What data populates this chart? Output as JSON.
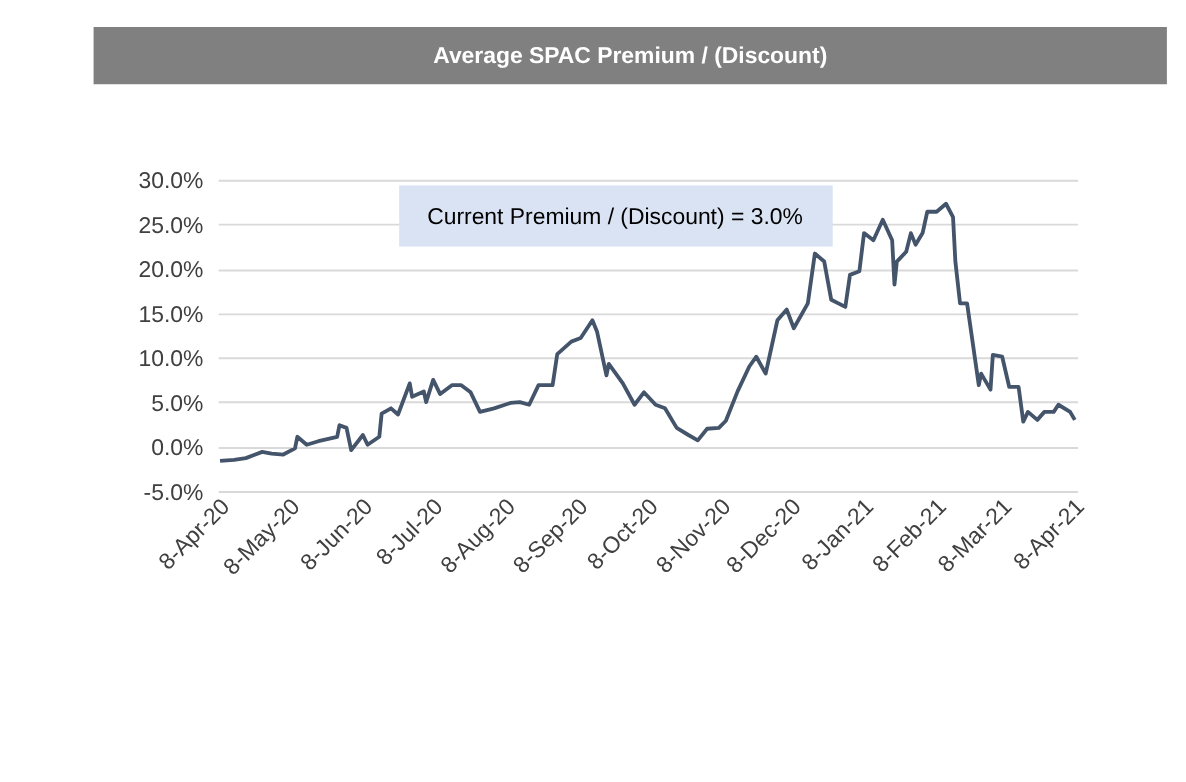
{
  "chart_data": {
    "type": "line",
    "title": "Average SPAC Premium / (Discount)",
    "annotations": [
      "Current Premium / (Discount) = 3.0%"
    ],
    "x": [
      "2020-04-09",
      "2020-04-15",
      "2020-04-20",
      "2020-04-27",
      "2020-05-01",
      "2020-05-06",
      "2020-05-11",
      "2020-05-12",
      "2020-05-16",
      "2020-05-21",
      "2020-05-29",
      "2020-05-30",
      "2020-06-02",
      "2020-06-04",
      "2020-06-09",
      "2020-06-11",
      "2020-06-16",
      "2020-06-17",
      "2020-06-21",
      "2020-06-24",
      "2020-06-29",
      "2020-06-30",
      "2020-07-05",
      "2020-07-06",
      "2020-07-09",
      "2020-07-12",
      "2020-07-17",
      "2020-07-21",
      "2020-07-25",
      "2020-07-29",
      "2020-08-04",
      "2020-08-11",
      "2020-08-15",
      "2020-08-19",
      "2020-08-23",
      "2020-08-29",
      "2020-08-31",
      "2020-09-06",
      "2020-09-10",
      "2020-09-15",
      "2020-09-17",
      "2020-09-21",
      "2020-09-22",
      "2020-09-28",
      "2020-10-03",
      "2020-10-07",
      "2020-10-12",
      "2020-10-16",
      "2020-10-21",
      "2020-10-26",
      "2020-10-30",
      "2020-11-03",
      "2020-11-08",
      "2020-11-11",
      "2020-11-16",
      "2020-11-21",
      "2020-11-24",
      "2020-11-28",
      "2020-12-03",
      "2020-12-07",
      "2020-12-10",
      "2020-12-16",
      "2020-12-19",
      "2020-12-23",
      "2020-12-26",
      "2021-01-01",
      "2021-01-03",
      "2021-01-07",
      "2021-01-09",
      "2021-01-13",
      "2021-01-17",
      "2021-01-21",
      "2021-01-22",
      "2021-01-23",
      "2021-01-27",
      "2021-01-29",
      "2021-01-31",
      "2021-02-03",
      "2021-02-05",
      "2021-02-09",
      "2021-02-13",
      "2021-02-16",
      "2021-02-17",
      "2021-02-19",
      "2021-02-22",
      "2021-02-27",
      "2021-02-28",
      "2021-03-04",
      "2021-03-05",
      "2021-03-09",
      "2021-03-12",
      "2021-03-16",
      "2021-03-18",
      "2021-03-20",
      "2021-03-24",
      "2021-03-27",
      "2021-03-31",
      "2021-04-02",
      "2021-04-07",
      "2021-04-09"
    ],
    "series": [
      {
        "color": "#44546a",
        "values": [
          -1.6,
          -1.5,
          -1.3,
          -0.6,
          -0.8,
          -0.9,
          -0.2,
          1.1,
          0.2,
          0.6,
          1.1,
          2.4,
          2.1,
          -0.4,
          1.3,
          0.2,
          1.1,
          3.7,
          4.3,
          3.6,
          7.1,
          5.6,
          6.2,
          5.0,
          7.5,
          5.9,
          6.9,
          6.9,
          6.1,
          3.9,
          4.3,
          4.9,
          5.0,
          4.7,
          6.9,
          6.9,
          10.4,
          11.8,
          12.2,
          14.2,
          12.9,
          8.0,
          9.3,
          7.1,
          4.7,
          6.1,
          4.7,
          4.3,
          2.1,
          1.3,
          0.7,
          2.0,
          2.1,
          2.9,
          6.2,
          9.0,
          10.1,
          8.2,
          14.2,
          15.4,
          13.3,
          16.1,
          21.7,
          20.8,
          16.5,
          15.7,
          19.3,
          19.7,
          24.0,
          23.2,
          25.5,
          23.2,
          18.2,
          20.8,
          21.9,
          24.0,
          22.7,
          24.0,
          26.4,
          26.4,
          27.3,
          25.8,
          20.8,
          16.1,
          16.1,
          6.9,
          8.2,
          6.4,
          10.3,
          10.1,
          6.7,
          6.7,
          2.8,
          3.9,
          3.0,
          3.9,
          3.9,
          4.7,
          3.9,
          3.0
        ]
      }
    ],
    "xlim": [
      "2020-04-08",
      "2021-04-10"
    ],
    "xticks": [
      {
        "value": "2020-04-08",
        "label": "8-Apr-20"
      },
      {
        "value": "2020-05-08",
        "label": "8-May-20"
      },
      {
        "value": "2020-06-08",
        "label": "8-Jun-20"
      },
      {
        "value": "2020-07-08",
        "label": "8-Jul-20"
      },
      {
        "value": "2020-08-08",
        "label": "8-Aug-20"
      },
      {
        "value": "2020-09-08",
        "label": "8-Sep-20"
      },
      {
        "value": "2020-10-08",
        "label": "8-Oct-20"
      },
      {
        "value": "2020-11-08",
        "label": "8-Nov-20"
      },
      {
        "value": "2020-12-08",
        "label": "8-Dec-20"
      },
      {
        "value": "2021-01-08",
        "label": "8-Jan-21"
      },
      {
        "value": "2021-02-08",
        "label": "8-Feb-21"
      },
      {
        "value": "2021-03-08",
        "label": "8-Mar-21"
      },
      {
        "value": "2021-04-08",
        "label": "8-Apr-21"
      }
    ],
    "ylim": [
      -5,
      30
    ],
    "yticks": [
      {
        "value": -5,
        "label": "-5.0%"
      },
      {
        "value": 0,
        "label": "0.0%"
      },
      {
        "value": 5,
        "label": "5.0%"
      },
      {
        "value": 10,
        "label": "10.0%"
      },
      {
        "value": 15,
        "label": "15.0%"
      },
      {
        "value": 20,
        "label": "20.0%"
      },
      {
        "value": 25,
        "label": "25.0%"
      },
      {
        "value": 30,
        "label": "30.0%"
      }
    ],
    "grid": "y",
    "marker": "none",
    "line_style": "solid"
  }
}
